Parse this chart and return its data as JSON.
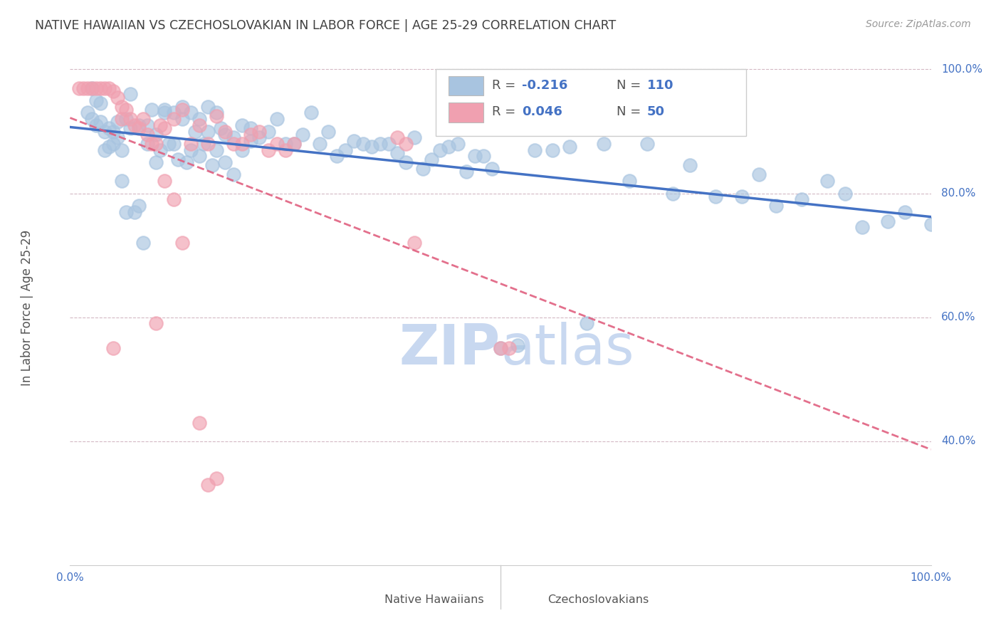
{
  "title": "NATIVE HAWAIIAN VS CZECHOSLOVAKIAN IN LABOR FORCE | AGE 25-29 CORRELATION CHART",
  "source": "Source: ZipAtlas.com",
  "ylabel": "In Labor Force | Age 25-29",
  "legend_blue_r": "-0.216",
  "legend_blue_n": "110",
  "legend_pink_r": "0.046",
  "legend_pink_n": "50",
  "legend_blue_label": "Native Hawaiians",
  "legend_pink_label": "Czechoslovakians",
  "blue_color": "#a8c4e0",
  "pink_color": "#f0a0b0",
  "blue_line_color": "#4472c4",
  "pink_line_color": "#e06080",
  "title_color": "#404040",
  "axis_label_color": "#4472c4",
  "watermark_color": "#c8d8f0",
  "blue_scatter_x": [
    0.02,
    0.025,
    0.03,
    0.035,
    0.04,
    0.045,
    0.05,
    0.055,
    0.06,
    0.065,
    0.07,
    0.08,
    0.09,
    0.1,
    0.11,
    0.12,
    0.13,
    0.14,
    0.15,
    0.16,
    0.17,
    0.18,
    0.19,
    0.2,
    0.21,
    0.22,
    0.23,
    0.24,
    0.25,
    0.26,
    0.27,
    0.28,
    0.29,
    0.3,
    0.31,
    0.32,
    0.33,
    0.34,
    0.35,
    0.36,
    0.37,
    0.38,
    0.39,
    0.4,
    0.41,
    0.42,
    0.43,
    0.44,
    0.45,
    0.46,
    0.47,
    0.48,
    0.49,
    0.5,
    0.52,
    0.54,
    0.56,
    0.58,
    0.6,
    0.62,
    0.65,
    0.67,
    0.7,
    0.72,
    0.75,
    0.78,
    0.8,
    0.82,
    0.85,
    0.88,
    0.9,
    0.92,
    0.95,
    0.97,
    1.0,
    0.025,
    0.03,
    0.035,
    0.04,
    0.045,
    0.05,
    0.055,
    0.06,
    0.065,
    0.07,
    0.075,
    0.08,
    0.085,
    0.09,
    0.095,
    0.1,
    0.105,
    0.11,
    0.115,
    0.12,
    0.125,
    0.13,
    0.135,
    0.14,
    0.145,
    0.15,
    0.155,
    0.16,
    0.165,
    0.17,
    0.175,
    0.18,
    0.19,
    0.2,
    0.21
  ],
  "blue_scatter_y": [
    0.93,
    0.92,
    0.91,
    0.945,
    0.9,
    0.905,
    0.88,
    0.89,
    0.87,
    0.92,
    0.905,
    0.91,
    0.88,
    0.895,
    0.93,
    0.93,
    0.94,
    0.93,
    0.92,
    0.94,
    0.93,
    0.895,
    0.89,
    0.91,
    0.905,
    0.89,
    0.9,
    0.92,
    0.88,
    0.88,
    0.895,
    0.93,
    0.88,
    0.9,
    0.86,
    0.87,
    0.885,
    0.88,
    0.875,
    0.88,
    0.88,
    0.865,
    0.85,
    0.89,
    0.84,
    0.855,
    0.87,
    0.875,
    0.88,
    0.835,
    0.86,
    0.86,
    0.84,
    0.55,
    0.555,
    0.87,
    0.87,
    0.875,
    0.59,
    0.88,
    0.82,
    0.88,
    0.8,
    0.845,
    0.795,
    0.795,
    0.83,
    0.78,
    0.79,
    0.82,
    0.8,
    0.745,
    0.755,
    0.77,
    0.75,
    0.97,
    0.95,
    0.915,
    0.87,
    0.875,
    0.9,
    0.915,
    0.82,
    0.77,
    0.96,
    0.77,
    0.78,
    0.72,
    0.91,
    0.935,
    0.85,
    0.87,
    0.935,
    0.88,
    0.88,
    0.855,
    0.92,
    0.85,
    0.87,
    0.9,
    0.86,
    0.88,
    0.9,
    0.845,
    0.87,
    0.905,
    0.85,
    0.83,
    0.87,
    0.885
  ],
  "pink_scatter_x": [
    0.01,
    0.015,
    0.02,
    0.025,
    0.03,
    0.035,
    0.04,
    0.045,
    0.05,
    0.055,
    0.06,
    0.065,
    0.07,
    0.075,
    0.08,
    0.085,
    0.09,
    0.095,
    0.1,
    0.105,
    0.11,
    0.12,
    0.13,
    0.14,
    0.15,
    0.16,
    0.17,
    0.18,
    0.19,
    0.2,
    0.21,
    0.22,
    0.23,
    0.24,
    0.25,
    0.26,
    0.38,
    0.39,
    0.4,
    0.5,
    0.51,
    0.13,
    0.15,
    0.16,
    0.17,
    0.1,
    0.11,
    0.12,
    0.05,
    0.06
  ],
  "pink_scatter_y": [
    0.97,
    0.97,
    0.97,
    0.97,
    0.97,
    0.97,
    0.97,
    0.97,
    0.965,
    0.955,
    0.94,
    0.935,
    0.92,
    0.91,
    0.905,
    0.92,
    0.895,
    0.88,
    0.88,
    0.91,
    0.905,
    0.92,
    0.935,
    0.88,
    0.91,
    0.88,
    0.925,
    0.9,
    0.88,
    0.88,
    0.895,
    0.9,
    0.87,
    0.88,
    0.87,
    0.88,
    0.89,
    0.88,
    0.72,
    0.55,
    0.55,
    0.72,
    0.43,
    0.33,
    0.34,
    0.59,
    0.82,
    0.79,
    0.55,
    0.92
  ]
}
